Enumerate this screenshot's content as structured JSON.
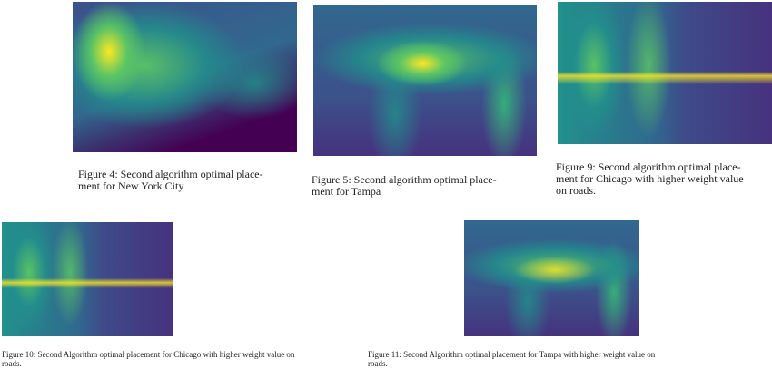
{
  "figures": [
    {
      "caption_lines": [
        "Figure 4: Second algorithm optimal place-",
        "ment for New York City"
      ]
    },
    {
      "caption_lines": [
        "Figure 5: Second algorithm optimal place-",
        "ment for Tampa"
      ]
    },
    {
      "caption_lines": [
        "Figure 9: Second algorithm optimal place-",
        "ment for Chicago with higher weight value",
        "on roads."
      ]
    },
    {
      "caption_lines": [
        "Figure 10: Second Algorithm optimal placement for Chicago with higher weight value on",
        "roads."
      ]
    },
    {
      "caption_lines": [
        "Figure 11: Second Algorithm optimal placement for Tampa with higher weight value on",
        "roads."
      ]
    }
  ]
}
